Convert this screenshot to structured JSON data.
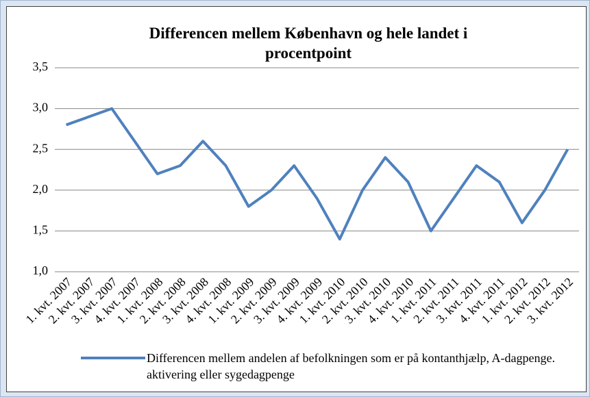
{
  "chart_data": {
    "type": "line",
    "title": "Differencen mellem København og hele landet i procentpoint",
    "categories": [
      "1. kvt. 2007",
      "2. kvt. 2007",
      "3. kvt. 2007",
      "4. kvt. 2007",
      "1. kvt. 2008",
      "2. kvt. 2008",
      "3. kvt. 2008",
      "4. kvt. 2008",
      "1. kvt. 2009",
      "2. kvt. 2009",
      "3. kvt. 2009",
      "4. kvt. 2009",
      "1. kvt. 2010",
      "2. kvt. 2010",
      "3. kvt. 2010",
      "4. kvt. 2010",
      "1. kvt. 2011",
      "2. kvt. 2011",
      "3. kvt. 2011",
      "4. kvt. 2011",
      "1. kvt. 2012",
      "2. kvt. 2012",
      "3. kvt. 2012"
    ],
    "series": [
      {
        "name": "Differencen mellem andelen af befolkningen som er på kontanthjælp, A-dagpenge. aktivering eller sygedagpenge",
        "color": "#4f81bd",
        "values": [
          2.8,
          2.9,
          3.0,
          2.6,
          2.2,
          2.3,
          2.6,
          2.3,
          1.8,
          2.0,
          2.3,
          1.9,
          1.4,
          2.0,
          2.4,
          2.1,
          1.5,
          1.9,
          2.3,
          2.1,
          1.6,
          2.0,
          2.5
        ]
      }
    ],
    "ylim": [
      1.0,
      3.5
    ],
    "yticks": [
      {
        "value": 1.0,
        "label": "1,0"
      },
      {
        "value": 1.5,
        "label": "1,5"
      },
      {
        "value": 2.0,
        "label": "2,0"
      },
      {
        "value": 2.5,
        "label": "2,5"
      },
      {
        "value": 3.0,
        "label": "3,0"
      },
      {
        "value": 3.5,
        "label": "3,5"
      }
    ],
    "grid": true,
    "legend": "bottom"
  }
}
